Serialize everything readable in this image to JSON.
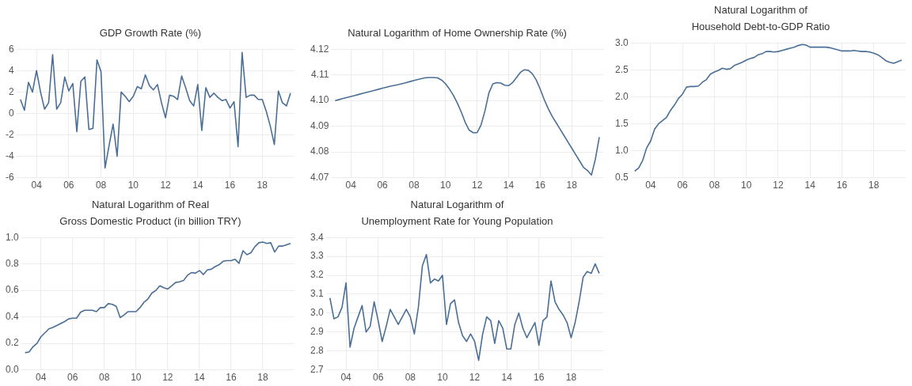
{
  "chart_data": [
    {
      "type": "line",
      "title": "GDP Growth Rate (%)",
      "color": "#4a6f97",
      "grid": true,
      "xlim": [
        2002.75,
        2020
      ],
      "xticks": [
        {
          "value": 2004,
          "label": "04"
        },
        {
          "value": 2006,
          "label": "06"
        },
        {
          "value": 2008,
          "label": "08"
        },
        {
          "value": 2010,
          "label": "10"
        },
        {
          "value": 2012,
          "label": "12"
        },
        {
          "value": 2014,
          "label": "14"
        },
        {
          "value": 2016,
          "label": "16"
        },
        {
          "value": 2018,
          "label": "18"
        }
      ],
      "ylim": [
        -6,
        6
      ],
      "yticks": [
        -6,
        -4,
        -2,
        0,
        2,
        4,
        6
      ],
      "x": [
        2003,
        2003.25,
        2003.5,
        2003.75,
        2004,
        2004.25,
        2004.5,
        2004.75,
        2005,
        2005.25,
        2005.5,
        2005.75,
        2006,
        2006.25,
        2006.5,
        2006.75,
        2007,
        2007.25,
        2007.5,
        2007.75,
        2008,
        2008.25,
        2008.5,
        2008.75,
        2009,
        2009.25,
        2009.5,
        2009.75,
        2010,
        2010.25,
        2010.5,
        2010.75,
        2011,
        2011.25,
        2011.5,
        2011.75,
        2012,
        2012.25,
        2012.5,
        2012.75,
        2013,
        2013.25,
        2013.5,
        2013.75,
        2014,
        2014.25,
        2014.5,
        2014.75,
        2015,
        2015.25,
        2015.5,
        2015.75,
        2016,
        2016.25,
        2016.5,
        2016.75,
        2017,
        2017.25,
        2017.5,
        2017.75,
        2018,
        2018.25,
        2018.5,
        2018.75,
        2019,
        2019.25,
        2019.5,
        2019.75
      ],
      "values": [
        1.3,
        0.3,
        2.9,
        2.0,
        4.0,
        2.0,
        0.4,
        1.0,
        5.5,
        0.4,
        1.0,
        3.4,
        2.1,
        2.8,
        -1.7,
        3.0,
        3.4,
        -1.5,
        -1.4,
        5.0,
        3.9,
        -5.1,
        -3.0,
        -1.0,
        -4.0,
        2.0,
        1.6,
        1.1,
        1.6,
        2.5,
        2.3,
        3.6,
        2.6,
        2.2,
        2.7,
        1.0,
        -0.4,
        1.7,
        1.6,
        1.3,
        3.5,
        2.4,
        1.2,
        0.7,
        2.7,
        -1.6,
        2.4,
        1.5,
        1.9,
        1.5,
        1.2,
        1.3,
        0.5,
        1.1,
        -3.1,
        5.7,
        1.5,
        1.7,
        1.7,
        1.3,
        1.3,
        0.2,
        -1.2,
        -2.9,
        2.1,
        1.0,
        0.7,
        1.9
      ]
    },
    {
      "type": "line",
      "title": "Natural Logarithm of Home Ownership Rate (%)",
      "color": "#4a6f97",
      "grid": true,
      "xlim": [
        2002.75,
        2020
      ],
      "xticks": [
        {
          "value": 2004,
          "label": "04"
        },
        {
          "value": 2006,
          "label": "06"
        },
        {
          "value": 2008,
          "label": "08"
        },
        {
          "value": 2010,
          "label": "10"
        },
        {
          "value": 2012,
          "label": "12"
        },
        {
          "value": 2014,
          "label": "14"
        },
        {
          "value": 2016,
          "label": "16"
        },
        {
          "value": 2018,
          "label": "18"
        }
      ],
      "ylim": [
        4.07,
        4.12
      ],
      "yticks": [
        4.07,
        4.08,
        4.09,
        {
          "value": 4.1,
          "label": "4.10"
        },
        4.11,
        4.12
      ],
      "x": [
        2003,
        2003.25,
        2003.5,
        2003.75,
        2004,
        2004.25,
        2004.5,
        2004.75,
        2005,
        2005.25,
        2005.5,
        2005.75,
        2006,
        2006.25,
        2006.5,
        2006.75,
        2007,
        2007.25,
        2007.5,
        2007.75,
        2008,
        2008.25,
        2008.5,
        2008.75,
        2009,
        2009.25,
        2009.5,
        2009.75,
        2010,
        2010.25,
        2010.5,
        2010.75,
        2011,
        2011.25,
        2011.5,
        2011.75,
        2012,
        2012.25,
        2012.5,
        2012.75,
        2013,
        2013.25,
        2013.5,
        2013.75,
        2014,
        2014.25,
        2014.5,
        2014.75,
        2015,
        2015.25,
        2015.5,
        2015.75,
        2016,
        2016.25,
        2016.5,
        2016.75,
        2017,
        2017.25,
        2017.5,
        2017.75,
        2018,
        2018.25,
        2018.5,
        2018.75,
        2019,
        2019.25,
        2019.5,
        2019.75
      ],
      "values": [
        4.1,
        4.1004,
        4.1008,
        4.1012,
        4.1016,
        4.102,
        4.1024,
        4.1028,
        4.1032,
        4.1036,
        4.104,
        4.1044,
        4.1048,
        4.1052,
        4.1056,
        4.1059,
        4.1062,
        4.1066,
        4.107,
        4.1074,
        4.1078,
        4.1082,
        4.1086,
        4.1089,
        4.109,
        4.109,
        4.1088,
        4.108,
        4.1065,
        4.1045,
        4.102,
        4.099,
        4.0955,
        4.0915,
        4.0885,
        4.0875,
        4.0875,
        4.0905,
        4.096,
        4.103,
        4.1065,
        4.107,
        4.1068,
        4.106,
        4.1058,
        4.107,
        4.109,
        4.111,
        4.112,
        4.1118,
        4.1105,
        4.108,
        4.1045,
        4.1005,
        4.097,
        4.094,
        4.0915,
        4.089,
        4.0865,
        4.084,
        4.0815,
        4.079,
        4.0765,
        4.074,
        4.0728,
        4.071,
        4.0772,
        4.0858
      ]
    },
    {
      "type": "line",
      "title": "Natural Logarithm of\nHousehold Debt-to-GDP Ratio",
      "color": "#4a6f97",
      "grid": true,
      "xlim": [
        2002.75,
        2020
      ],
      "xticks": [
        {
          "value": 2004,
          "label": "04"
        },
        {
          "value": 2006,
          "label": "06"
        },
        {
          "value": 2008,
          "label": "08"
        },
        {
          "value": 2010,
          "label": "10"
        },
        {
          "value": 2012,
          "label": "12"
        },
        {
          "value": 2014,
          "label": "14"
        },
        {
          "value": 2016,
          "label": "16"
        },
        {
          "value": 2018,
          "label": "18"
        }
      ],
      "ylim": [
        0.5,
        3.0
      ],
      "yticks": [
        0.5,
        {
          "value": 1,
          "label": "1.0"
        },
        1.5,
        {
          "value": 2,
          "label": "2.0"
        },
        2.5,
        {
          "value": 3,
          "label": "3.0"
        }
      ],
      "x": [
        2003,
        2003.25,
        2003.5,
        2003.75,
        2004,
        2004.25,
        2004.5,
        2004.75,
        2005,
        2005.25,
        2005.5,
        2005.75,
        2006,
        2006.25,
        2006.5,
        2006.75,
        2007,
        2007.25,
        2007.5,
        2007.75,
        2008,
        2008.25,
        2008.5,
        2008.75,
        2009,
        2009.25,
        2009.5,
        2009.75,
        2010,
        2010.25,
        2010.5,
        2010.75,
        2011,
        2011.25,
        2011.5,
        2011.75,
        2012,
        2012.25,
        2012.5,
        2012.75,
        2013,
        2013.25,
        2013.5,
        2013.75,
        2014,
        2014.25,
        2014.5,
        2014.75,
        2015,
        2015.25,
        2015.5,
        2015.75,
        2016,
        2016.25,
        2016.5,
        2016.75,
        2017,
        2017.25,
        2017.5,
        2017.75,
        2018,
        2018.25,
        2018.5,
        2018.75,
        2019,
        2019.25,
        2019.5,
        2019.75
      ],
      "values": [
        0.62,
        0.68,
        0.82,
        1.05,
        1.18,
        1.4,
        1.5,
        1.56,
        1.62,
        1.75,
        1.85,
        1.97,
        2.05,
        2.18,
        2.19,
        2.19,
        2.2,
        2.27,
        2.32,
        2.42,
        2.46,
        2.49,
        2.53,
        2.51,
        2.52,
        2.58,
        2.61,
        2.64,
        2.68,
        2.71,
        2.73,
        2.78,
        2.8,
        2.84,
        2.84,
        2.83,
        2.84,
        2.86,
        2.88,
        2.9,
        2.92,
        2.95,
        2.97,
        2.96,
        2.92,
        2.92,
        2.92,
        2.92,
        2.92,
        2.91,
        2.89,
        2.87,
        2.85,
        2.85,
        2.85,
        2.86,
        2.85,
        2.84,
        2.84,
        2.83,
        2.81,
        2.78,
        2.73,
        2.67,
        2.64,
        2.62,
        2.65,
        2.68
      ]
    },
    {
      "type": "line",
      "title": "Natural Logarithm of Real\nGross Domestic Product (in billion TRY)",
      "color": "#4a6f97",
      "grid": true,
      "xlim": [
        2002.75,
        2020
      ],
      "xticks": [
        {
          "value": 2004,
          "label": "04"
        },
        {
          "value": 2006,
          "label": "06"
        },
        {
          "value": 2008,
          "label": "08"
        },
        {
          "value": 2010,
          "label": "10"
        },
        {
          "value": 2012,
          "label": "12"
        },
        {
          "value": 2014,
          "label": "14"
        },
        {
          "value": 2016,
          "label": "16"
        },
        {
          "value": 2018,
          "label": "18"
        }
      ],
      "ylim": [
        0,
        1
      ],
      "yticks": [
        {
          "value": 0,
          "label": "0.0"
        },
        0.2,
        0.4,
        0.6,
        0.8,
        {
          "value": 1,
          "label": "1.0"
        }
      ],
      "x": [
        2003,
        2003.25,
        2003.5,
        2003.75,
        2004,
        2004.25,
        2004.5,
        2004.75,
        2005,
        2005.25,
        2005.5,
        2005.75,
        2006,
        2006.25,
        2006.5,
        2006.75,
        2007,
        2007.25,
        2007.5,
        2007.75,
        2008,
        2008.25,
        2008.5,
        2008.75,
        2009,
        2009.25,
        2009.5,
        2009.75,
        2010,
        2010.25,
        2010.5,
        2010.75,
        2011,
        2011.25,
        2011.5,
        2011.75,
        2012,
        2012.25,
        2012.5,
        2012.75,
        2013,
        2013.25,
        2013.5,
        2013.75,
        2014,
        2014.25,
        2014.5,
        2014.75,
        2015,
        2015.25,
        2015.5,
        2015.75,
        2016,
        2016.25,
        2016.5,
        2016.75,
        2017,
        2017.25,
        2017.5,
        2017.75,
        2018,
        2018.25,
        2018.5,
        2018.75,
        2019,
        2019.25,
        2019.5,
        2019.75
      ],
      "values": [
        0.13,
        0.135,
        0.175,
        0.2,
        0.25,
        0.28,
        0.31,
        0.32,
        0.335,
        0.35,
        0.365,
        0.385,
        0.39,
        0.39,
        0.435,
        0.45,
        0.45,
        0.45,
        0.44,
        0.47,
        0.47,
        0.5,
        0.495,
        0.48,
        0.395,
        0.415,
        0.44,
        0.44,
        0.44,
        0.47,
        0.51,
        0.535,
        0.58,
        0.6,
        0.635,
        0.62,
        0.61,
        0.635,
        0.66,
        0.665,
        0.675,
        0.715,
        0.735,
        0.73,
        0.75,
        0.72,
        0.755,
        0.76,
        0.78,
        0.795,
        0.82,
        0.825,
        0.825,
        0.835,
        0.805,
        0.9,
        0.87,
        0.885,
        0.93,
        0.96,
        0.965,
        0.955,
        0.96,
        0.89,
        0.935,
        0.935,
        0.945,
        0.955
      ]
    },
    {
      "type": "line",
      "title": "Natural Logarithm of\nUnemployment Rate for Young Population",
      "color": "#4a6f97",
      "grid": true,
      "xlim": [
        2002.75,
        2020
      ],
      "xticks": [
        {
          "value": 2004,
          "label": "04"
        },
        {
          "value": 2006,
          "label": "06"
        },
        {
          "value": 2008,
          "label": "08"
        },
        {
          "value": 2010,
          "label": "10"
        },
        {
          "value": 2012,
          "label": "12"
        },
        {
          "value": 2014,
          "label": "14"
        },
        {
          "value": 2016,
          "label": "16"
        },
        {
          "value": 2018,
          "label": "18"
        }
      ],
      "ylim": [
        2.7,
        3.4
      ],
      "yticks": [
        2.7,
        2.8,
        2.9,
        {
          "value": 3,
          "label": "3.0"
        },
        3.1,
        3.2,
        3.3,
        3.4
      ],
      "x": [
        2003,
        2003.25,
        2003.5,
        2003.75,
        2004,
        2004.25,
        2004.5,
        2004.75,
        2005,
        2005.25,
        2005.5,
        2005.75,
        2006,
        2006.25,
        2006.5,
        2006.75,
        2007,
        2007.25,
        2007.5,
        2007.75,
        2008,
        2008.25,
        2008.5,
        2008.75,
        2009,
        2009.25,
        2009.5,
        2009.75,
        2010,
        2010.25,
        2010.5,
        2010.75,
        2011,
        2011.25,
        2011.5,
        2011.75,
        2012,
        2012.25,
        2012.5,
        2012.75,
        2013,
        2013.25,
        2013.5,
        2013.75,
        2014,
        2014.25,
        2014.5,
        2014.75,
        2015,
        2015.25,
        2015.5,
        2015.75,
        2016,
        2016.25,
        2016.5,
        2016.75,
        2017,
        2017.25,
        2017.5,
        2017.75,
        2018,
        2018.25,
        2018.5,
        2018.75,
        2019,
        2019.25,
        2019.5,
        2019.75
      ],
      "values": [
        3.08,
        2.97,
        2.98,
        3.03,
        3.16,
        2.82,
        2.92,
        2.98,
        3.04,
        2.9,
        2.93,
        3.06,
        2.96,
        2.85,
        2.93,
        3.02,
        2.98,
        2.94,
        2.98,
        3.02,
        2.98,
        2.89,
        3.03,
        3.25,
        3.31,
        3.16,
        3.18,
        3.17,
        3.2,
        2.94,
        3.05,
        3.07,
        2.95,
        2.88,
        2.85,
        2.89,
        2.85,
        2.75,
        2.89,
        2.98,
        2.96,
        2.84,
        2.96,
        2.92,
        2.81,
        2.81,
        2.94,
        3.0,
        2.92,
        2.87,
        2.91,
        2.95,
        2.83,
        2.96,
        2.98,
        3.17,
        3.06,
        3.02,
        2.99,
        2.95,
        2.87,
        2.95,
        3.06,
        3.19,
        3.22,
        3.21,
        3.26,
        3.21
      ]
    }
  ]
}
